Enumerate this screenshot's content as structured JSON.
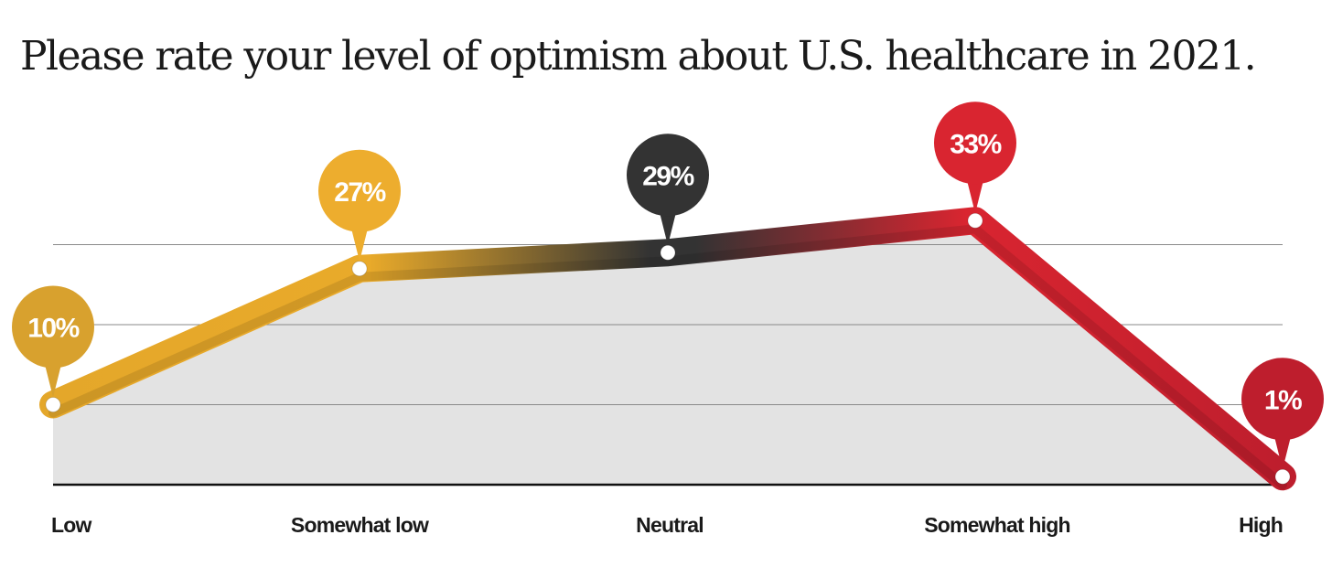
{
  "chart_data": {
    "type": "line",
    "title": "Please rate your level of optimism about U.S. healthcare in 2021.",
    "categories": [
      "Low",
      "Somewhat low",
      "Neutral",
      "Somewhat high",
      "High"
    ],
    "values": [
      10,
      27,
      29,
      33,
      1
    ],
    "value_labels": [
      "10%",
      "27%",
      "29%",
      "33%",
      "1%"
    ],
    "ylim": [
      0,
      40
    ],
    "xlabel": "",
    "ylabel": "",
    "grid": true,
    "legend": "none"
  },
  "colors": {
    "low": "#E4A72A",
    "somewhat_low": "#E9AA2A",
    "neutral": "#333333",
    "somewhat_high": "#D92530",
    "high": "#BE1E2D",
    "pin_low": "#D8A12E",
    "pin_somewhat_low": "#EDAD2E",
    "pin_neutral": "#333333",
    "pin_somewhat_high": "#D92530",
    "pin_high": "#BE1E2D",
    "area": "#E3E3E3",
    "grid": "#8A8A8A",
    "baseline": "#111111",
    "text": "#1A1A1A"
  }
}
